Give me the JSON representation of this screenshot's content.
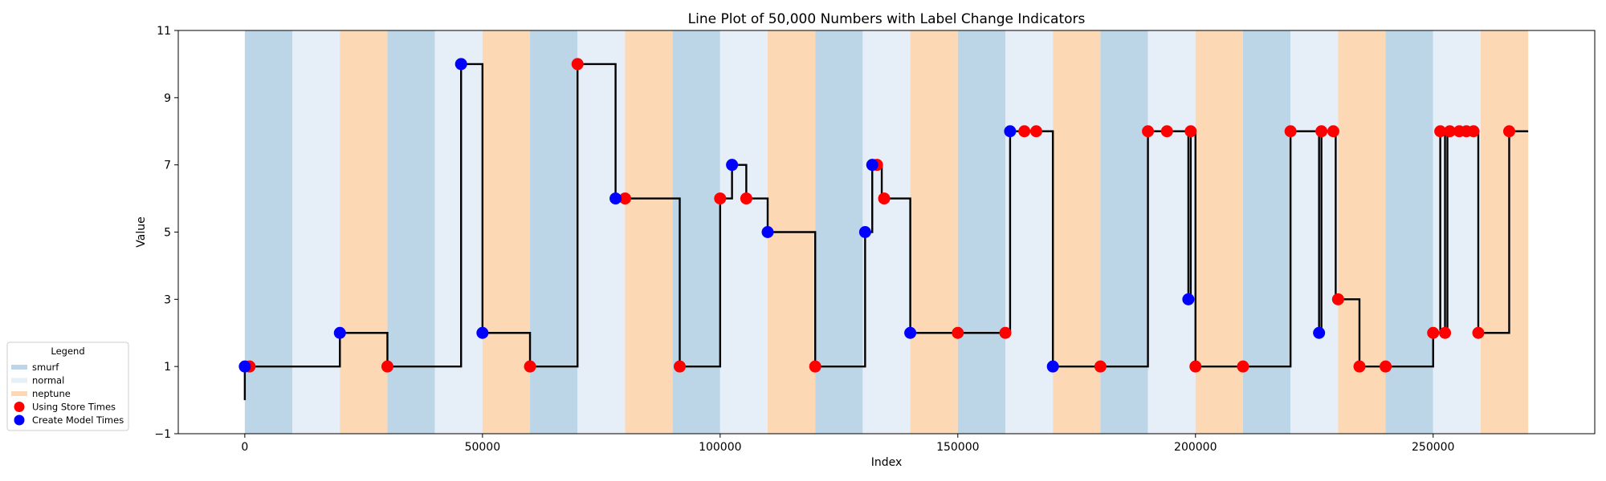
{
  "chart_data": {
    "type": "line",
    "title": "Line Plot of 50,000 Numbers with Label Change Indicators",
    "xlabel": "Index",
    "ylabel": "Value",
    "xlim": [
      -14000,
      284000
    ],
    "ylim": [
      -1,
      11
    ],
    "xticks": [
      0,
      50000,
      100000,
      150000,
      200000,
      250000
    ],
    "xtick_labels": [
      "0",
      "50000",
      "100000",
      "150000",
      "200000",
      "250000"
    ],
    "yticks": [
      -1,
      1,
      3,
      5,
      7,
      9,
      11
    ],
    "ytick_labels": [
      "−1",
      "1",
      "3",
      "5",
      "7",
      "9",
      "11"
    ],
    "grid": false,
    "colors": {
      "smurf": "#bcd6e8",
      "normal": "#e6eef8",
      "neptune": "#fdd8b5",
      "line": "#000000",
      "store_marker": "#ff0000",
      "model_marker": "#0000ff"
    },
    "label_bands": [
      {
        "label": "smurf",
        "start": 0,
        "end": 10000
      },
      {
        "label": "normal",
        "start": 10000,
        "end": 20000
      },
      {
        "label": "neptune",
        "start": 20000,
        "end": 30000
      },
      {
        "label": "smurf",
        "start": 30000,
        "end": 40000
      },
      {
        "label": "normal",
        "start": 40000,
        "end": 50000
      },
      {
        "label": "neptune",
        "start": 50000,
        "end": 60000
      },
      {
        "label": "smurf",
        "start": 60000,
        "end": 70000
      },
      {
        "label": "normal",
        "start": 70000,
        "end": 80000
      },
      {
        "label": "neptune",
        "start": 80000,
        "end": 90000
      },
      {
        "label": "smurf",
        "start": 90000,
        "end": 100000
      },
      {
        "label": "normal",
        "start": 100000,
        "end": 110000
      },
      {
        "label": "neptune",
        "start": 110000,
        "end": 120000
      },
      {
        "label": "smurf",
        "start": 120000,
        "end": 130000
      },
      {
        "label": "normal",
        "start": 130000,
        "end": 140000
      },
      {
        "label": "neptune",
        "start": 140000,
        "end": 150000
      },
      {
        "label": "smurf",
        "start": 150000,
        "end": 160000
      },
      {
        "label": "normal",
        "start": 160000,
        "end": 170000
      },
      {
        "label": "neptune",
        "start": 170000,
        "end": 180000
      },
      {
        "label": "smurf",
        "start": 180000,
        "end": 190000
      },
      {
        "label": "normal",
        "start": 190000,
        "end": 200000
      },
      {
        "label": "neptune",
        "start": 200000,
        "end": 210000
      },
      {
        "label": "smurf",
        "start": 210000,
        "end": 220000
      },
      {
        "label": "normal",
        "start": 220000,
        "end": 230000
      },
      {
        "label": "neptune",
        "start": 230000,
        "end": 240000
      },
      {
        "label": "smurf",
        "start": 240000,
        "end": 250000
      },
      {
        "label": "normal",
        "start": 250000,
        "end": 260000
      },
      {
        "label": "neptune",
        "start": 260000,
        "end": 270000
      }
    ],
    "line_series": {
      "name": "",
      "points": [
        [
          0,
          0
        ],
        [
          0,
          1
        ],
        [
          20000,
          1
        ],
        [
          20000,
          2
        ],
        [
          30000,
          2
        ],
        [
          30000,
          1
        ],
        [
          45500,
          1
        ],
        [
          45500,
          10
        ],
        [
          50000,
          10
        ],
        [
          50000,
          2
        ],
        [
          60000,
          2
        ],
        [
          60000,
          1
        ],
        [
          70000,
          1
        ],
        [
          70000,
          10
        ],
        [
          78000,
          10
        ],
        [
          78000,
          6
        ],
        [
          91500,
          6
        ],
        [
          91500,
          1
        ],
        [
          100000,
          1
        ],
        [
          100000,
          6
        ],
        [
          102500,
          6
        ],
        [
          102500,
          7
        ],
        [
          105500,
          7
        ],
        [
          105500,
          6
        ],
        [
          110000,
          6
        ],
        [
          110000,
          5
        ],
        [
          120000,
          5
        ],
        [
          120000,
          1
        ],
        [
          130500,
          1
        ],
        [
          130500,
          5
        ],
        [
          132000,
          5
        ],
        [
          132000,
          7
        ],
        [
          134000,
          7
        ],
        [
          134000,
          6
        ],
        [
          140000,
          6
        ],
        [
          140000,
          2
        ],
        [
          161000,
          2
        ],
        [
          161000,
          8
        ],
        [
          170000,
          8
        ],
        [
          170000,
          1
        ],
        [
          190000,
          1
        ],
        [
          190000,
          8
        ],
        [
          198500,
          8
        ],
        [
          198500,
          3
        ],
        [
          199000,
          3
        ],
        [
          199000,
          8
        ],
        [
          200000,
          8
        ],
        [
          200000,
          1
        ],
        [
          220000,
          1
        ],
        [
          220000,
          8
        ],
        [
          226000,
          8
        ],
        [
          226000,
          2
        ],
        [
          226500,
          2
        ],
        [
          226500,
          8
        ],
        [
          229500,
          8
        ],
        [
          229500,
          3
        ],
        [
          234500,
          3
        ],
        [
          234500,
          1
        ],
        [
          250000,
          1
        ],
        [
          250000,
          2
        ],
        [
          251500,
          2
        ],
        [
          251500,
          8
        ],
        [
          252500,
          8
        ],
        [
          252500,
          2
        ],
        [
          253000,
          2
        ],
        [
          253000,
          8
        ],
        [
          259500,
          8
        ],
        [
          259500,
          2
        ],
        [
          266000,
          2
        ],
        [
          266000,
          8
        ],
        [
          270000,
          8
        ]
      ]
    },
    "series": [
      {
        "name": "Using Store Times",
        "x": [
          1000,
          30000,
          60000,
          70000,
          80000,
          91500,
          100000,
          105500,
          120000,
          133000,
          134500,
          150000,
          160000,
          164000,
          166500,
          180000,
          190000,
          194000,
          199000,
          200000,
          210000,
          220000,
          226500,
          229000,
          230000,
          234500,
          240000,
          250000,
          251500,
          252500,
          253500,
          255500,
          257000,
          258500,
          259500,
          266000
        ],
        "y": [
          1,
          1,
          1,
          10,
          6,
          1,
          6,
          6,
          1,
          7,
          6,
          2,
          2,
          8,
          8,
          1,
          8,
          8,
          8,
          1,
          1,
          8,
          8,
          8,
          3,
          1,
          1,
          2,
          8,
          2,
          8,
          8,
          8,
          8,
          2,
          8
        ]
      },
      {
        "name": "Create Model Times",
        "x": [
          0,
          20000,
          45500,
          50000,
          78000,
          102500,
          110000,
          130500,
          132000,
          140000,
          161000,
          170000,
          198500,
          226000
        ],
        "y": [
          1,
          2,
          10,
          2,
          6,
          7,
          5,
          5,
          7,
          2,
          8,
          1,
          3,
          2
        ]
      }
    ],
    "legend": {
      "title": "Legend",
      "placement": "lower-left-outside",
      "entries": [
        {
          "label": "smurf",
          "kind": "band",
          "color": "#bcd6e8"
        },
        {
          "label": "normal",
          "kind": "band",
          "color": "#e6eef8"
        },
        {
          "label": "neptune",
          "kind": "band",
          "color": "#fdd8b5"
        },
        {
          "label": "Using Store Times",
          "kind": "marker",
          "color": "#ff0000"
        },
        {
          "label": "Create Model Times",
          "kind": "marker",
          "color": "#0000ff"
        }
      ]
    }
  }
}
